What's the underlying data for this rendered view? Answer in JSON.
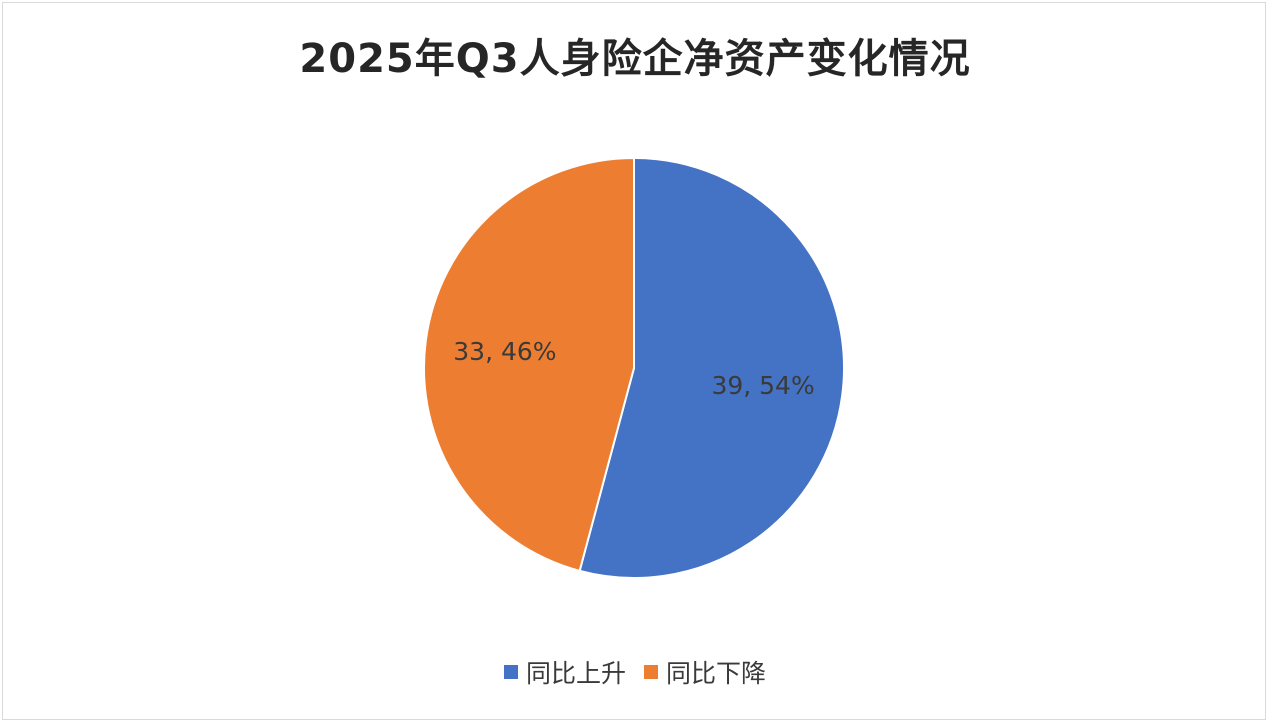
{
  "chart_data": {
    "type": "pie",
    "title": "2025年Q3人身险企净资产变化情况",
    "slices": [
      {
        "name": "同比上升",
        "value": 39,
        "percent": "54%",
        "color": "#4472c4",
        "label": "39, 54%"
      },
      {
        "name": "同比下降",
        "value": 33,
        "percent": "46%",
        "color": "#ed7d31",
        "label": "33, 46%"
      }
    ],
    "legend_position": "bottom",
    "start_angle": "12 o'clock, clockwise"
  }
}
